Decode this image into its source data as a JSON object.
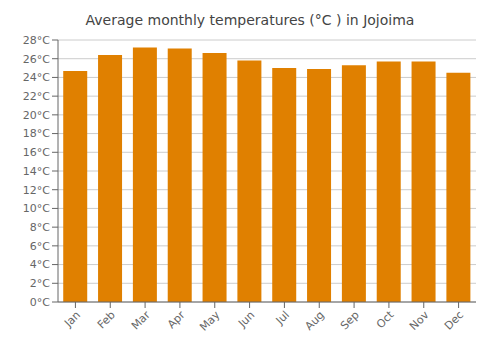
{
  "chart_data": {
    "type": "bar",
    "title": "Average monthly temperatures (°C ) in Jojoima",
    "categories": [
      "Jan",
      "Feb",
      "Mar",
      "Apr",
      "May",
      "Jun",
      "Jul",
      "Aug",
      "Sep",
      "Oct",
      "Nov",
      "Dec"
    ],
    "values": [
      24.7,
      26.4,
      27.2,
      27.1,
      26.6,
      25.8,
      25.0,
      24.9,
      25.3,
      25.7,
      25.7,
      24.5
    ],
    "color": "#E08000",
    "ylim": [
      0,
      28
    ],
    "yticks": [
      {
        "value": 0,
        "label": "0°C"
      },
      {
        "value": 2,
        "label": "2°C"
      },
      {
        "value": 4,
        "label": "4°C"
      },
      {
        "value": 6,
        "label": "6°C"
      },
      {
        "value": 8,
        "label": "8°C"
      },
      {
        "value": 10,
        "label": "10°C"
      },
      {
        "value": 12,
        "label": "12°C"
      },
      {
        "value": 14,
        "label": "14°C"
      },
      {
        "value": 16,
        "label": "16°C"
      },
      {
        "value": 18,
        "label": "18°C"
      },
      {
        "value": 20,
        "label": "20°C"
      },
      {
        "value": 22,
        "label": "22°C"
      },
      {
        "value": 24,
        "label": "24°C"
      },
      {
        "value": 26,
        "label": "26°C"
      },
      {
        "value": 28,
        "label": "28°C"
      }
    ],
    "grid": true
  }
}
